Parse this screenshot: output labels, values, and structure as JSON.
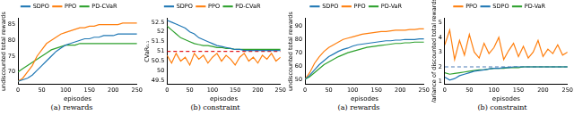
{
  "chart_data": [
    {
      "type": "line",
      "caption": "(a) rewards",
      "x_label": "episodes",
      "y_label": "undiscounted total rewards",
      "x": [
        0,
        10,
        20,
        30,
        40,
        50,
        60,
        70,
        80,
        90,
        100,
        110,
        120,
        130,
        140,
        150,
        160,
        170,
        180,
        190,
        200,
        210,
        220,
        230,
        240,
        250
      ],
      "xlim": [
        0,
        250
      ],
      "xticks": [
        0,
        50,
        100,
        150,
        200,
        250
      ],
      "ylim": [
        66,
        87
      ],
      "yticks": [
        70,
        75,
        80,
        85
      ],
      "grid": false,
      "legend": "top",
      "series": [
        {
          "name": "SDPO",
          "color": "#1f77b4",
          "values": [
            67,
            67.5,
            68,
            69,
            70.5,
            72,
            73.5,
            75,
            76.5,
            77.5,
            78.5,
            79,
            79.5,
            80,
            80.5,
            80.5,
            81,
            81,
            81.5,
            81.5,
            81.5,
            82,
            82,
            82,
            82,
            82
          ]
        },
        {
          "name": "PPO",
          "color": "#ff7f0e",
          "values": [
            67,
            68,
            70,
            72,
            75,
            77,
            79,
            80,
            81,
            82,
            82.5,
            83,
            83.5,
            84,
            84,
            84.5,
            84.5,
            85,
            85,
            85,
            85,
            85,
            85.5,
            85.5,
            85.5,
            85.5
          ]
        },
        {
          "name": "PD-CVaR",
          "color": "#2ca02c",
          "values": [
            70,
            71,
            72,
            73,
            74,
            75,
            76,
            77,
            77.5,
            78,
            78.5,
            78.5,
            78.5,
            79,
            79,
            79,
            79,
            79,
            79,
            79,
            79,
            79,
            79,
            79,
            79,
            79
          ]
        }
      ]
    },
    {
      "type": "line",
      "caption": "(b) constraint",
      "x_label": "episodes",
      "y_label": "CVaR₀.₁",
      "x": [
        0,
        10,
        20,
        30,
        40,
        50,
        60,
        70,
        80,
        90,
        100,
        110,
        120,
        130,
        140,
        150,
        160,
        170,
        180,
        190,
        200,
        210,
        220,
        230,
        240,
        250
      ],
      "xlim": [
        0,
        250
      ],
      "xticks": [
        0,
        50,
        100,
        150,
        200,
        250
      ],
      "ylim": [
        49.3,
        52.7
      ],
      "yticks": [
        49.5,
        50,
        50.5,
        51,
        51.5,
        52,
        52.5
      ],
      "grid": false,
      "legend": "top",
      "hline": {
        "y": 51,
        "color": "#e41a1c",
        "line_style": "dashed"
      },
      "series": [
        {
          "name": "SDPO",
          "color": "#1f77b4",
          "values": [
            52.6,
            52.5,
            52.4,
            52.3,
            52.2,
            52.0,
            51.9,
            51.7,
            51.6,
            51.5,
            51.4,
            51.3,
            51.25,
            51.2,
            51.15,
            51.1,
            51.1,
            51.05,
            51.05,
            51.05,
            51.05,
            51.05,
            51.05,
            51.05,
            51.05,
            51.05
          ]
        },
        {
          "name": "PPO",
          "color": "#ff7f0e",
          "values": [
            50.8,
            50.4,
            50.9,
            50.5,
            50.7,
            50.3,
            50.9,
            50.6,
            50.8,
            50.4,
            50.7,
            50.9,
            50.5,
            50.8,
            50.6,
            50.3,
            50.7,
            50.9,
            50.5,
            50.7,
            50.4,
            50.8,
            50.6,
            50.9,
            50.5,
            50.7
          ]
        },
        {
          "name": "PD-CVaR",
          "color": "#2ca02c",
          "values": [
            52.3,
            52.1,
            51.9,
            51.7,
            51.6,
            51.5,
            51.4,
            51.35,
            51.3,
            51.3,
            51.25,
            51.2,
            51.2,
            51.15,
            51.15,
            51.1,
            51.1,
            51.1,
            51.1,
            51.1,
            51.1,
            51.1,
            51.1,
            51.1,
            51.1,
            51.1
          ]
        }
      ]
    },
    {
      "type": "line",
      "caption": "(a) rewards",
      "x_label": "episodes",
      "y_label": "undiscounted total rewards",
      "x": [
        0,
        10,
        20,
        30,
        40,
        50,
        60,
        70,
        80,
        90,
        100,
        110,
        120,
        130,
        140,
        150,
        160,
        170,
        180,
        190,
        200,
        210,
        220,
        230,
        240,
        250
      ],
      "xlim": [
        0,
        250
      ],
      "xticks": [
        0,
        50,
        100,
        150,
        200,
        250
      ],
      "ylim": [
        46,
        96
      ],
      "yticks": [
        50,
        60,
        70,
        80,
        90
      ],
      "grid": false,
      "legend": "top",
      "series": [
        {
          "name": "SDPO",
          "color": "#1f77b4",
          "values": [
            50,
            53,
            57,
            61,
            64,
            67,
            69,
            71,
            72.5,
            73.5,
            75,
            76,
            76.5,
            77,
            77.5,
            78,
            78.5,
            79,
            79,
            79.5,
            79.5,
            80,
            80,
            80,
            80.5,
            80.5
          ]
        },
        {
          "name": "PPO",
          "color": "#ff7f0e",
          "values": [
            50,
            55,
            62,
            67,
            71,
            74,
            76,
            78,
            80,
            81,
            82,
            83,
            84,
            84.5,
            85,
            85.5,
            86,
            86,
            86.5,
            87,
            87,
            87,
            87.5,
            87.5,
            88,
            88
          ]
        },
        {
          "name": "PD-VaR",
          "color": "#2ca02c",
          "values": [
            50,
            52,
            55,
            58,
            61,
            63,
            65,
            67,
            68.5,
            70,
            71,
            72,
            73,
            74,
            74.5,
            75,
            75.5,
            76,
            76.5,
            77,
            77,
            77.5,
            77.5,
            78,
            78,
            78
          ]
        }
      ]
    },
    {
      "type": "line",
      "caption": "(b) constraint",
      "x_label": "episodes",
      "y_label": "Variance of discounted total rewards",
      "x": [
        0,
        10,
        20,
        30,
        40,
        50,
        60,
        70,
        80,
        90,
        100,
        110,
        120,
        130,
        140,
        150,
        160,
        170,
        180,
        190,
        200,
        210,
        220,
        230,
        240,
        250
      ],
      "xlim": [
        0,
        250
      ],
      "xticks": [
        0,
        50,
        100,
        150,
        200,
        250
      ],
      "ylim": [
        0.8,
        5.3
      ],
      "yticks": [
        1,
        2,
        3,
        4,
        5
      ],
      "grid": false,
      "legend": "top",
      "hline": {
        "y": 2,
        "color": "#4a7ab5",
        "line_style": "dashed"
      },
      "series": [
        {
          "name": "PPO",
          "color": "#ff7f0e",
          "values": [
            3.5,
            4.5,
            2.5,
            3.8,
            2.8,
            4.2,
            3.0,
            2.6,
            3.6,
            2.9,
            3.3,
            4.0,
            2.5,
            3.1,
            3.6,
            2.7,
            3.4,
            2.6,
            3.0,
            3.8,
            2.7,
            3.2,
            2.9,
            3.5,
            2.8,
            3.0
          ]
        },
        {
          "name": "SDPO",
          "color": "#1f77b4",
          "values": [
            1.3,
            1.1,
            1.2,
            1.4,
            1.5,
            1.6,
            1.7,
            1.75,
            1.8,
            1.85,
            1.9,
            1.9,
            1.95,
            1.95,
            2,
            2,
            2,
            2,
            2,
            2,
            2,
            2,
            2,
            2,
            2,
            2
          ]
        },
        {
          "name": "PD-VaR",
          "color": "#2ca02c",
          "values": [
            1.6,
            1.5,
            1.55,
            1.6,
            1.65,
            1.7,
            1.75,
            1.8,
            1.8,
            1.85,
            1.9,
            1.9,
            1.9,
            1.95,
            1.95,
            1.95,
            2,
            2,
            2,
            2,
            2,
            2,
            2,
            2,
            2,
            2
          ]
        }
      ]
    }
  ]
}
